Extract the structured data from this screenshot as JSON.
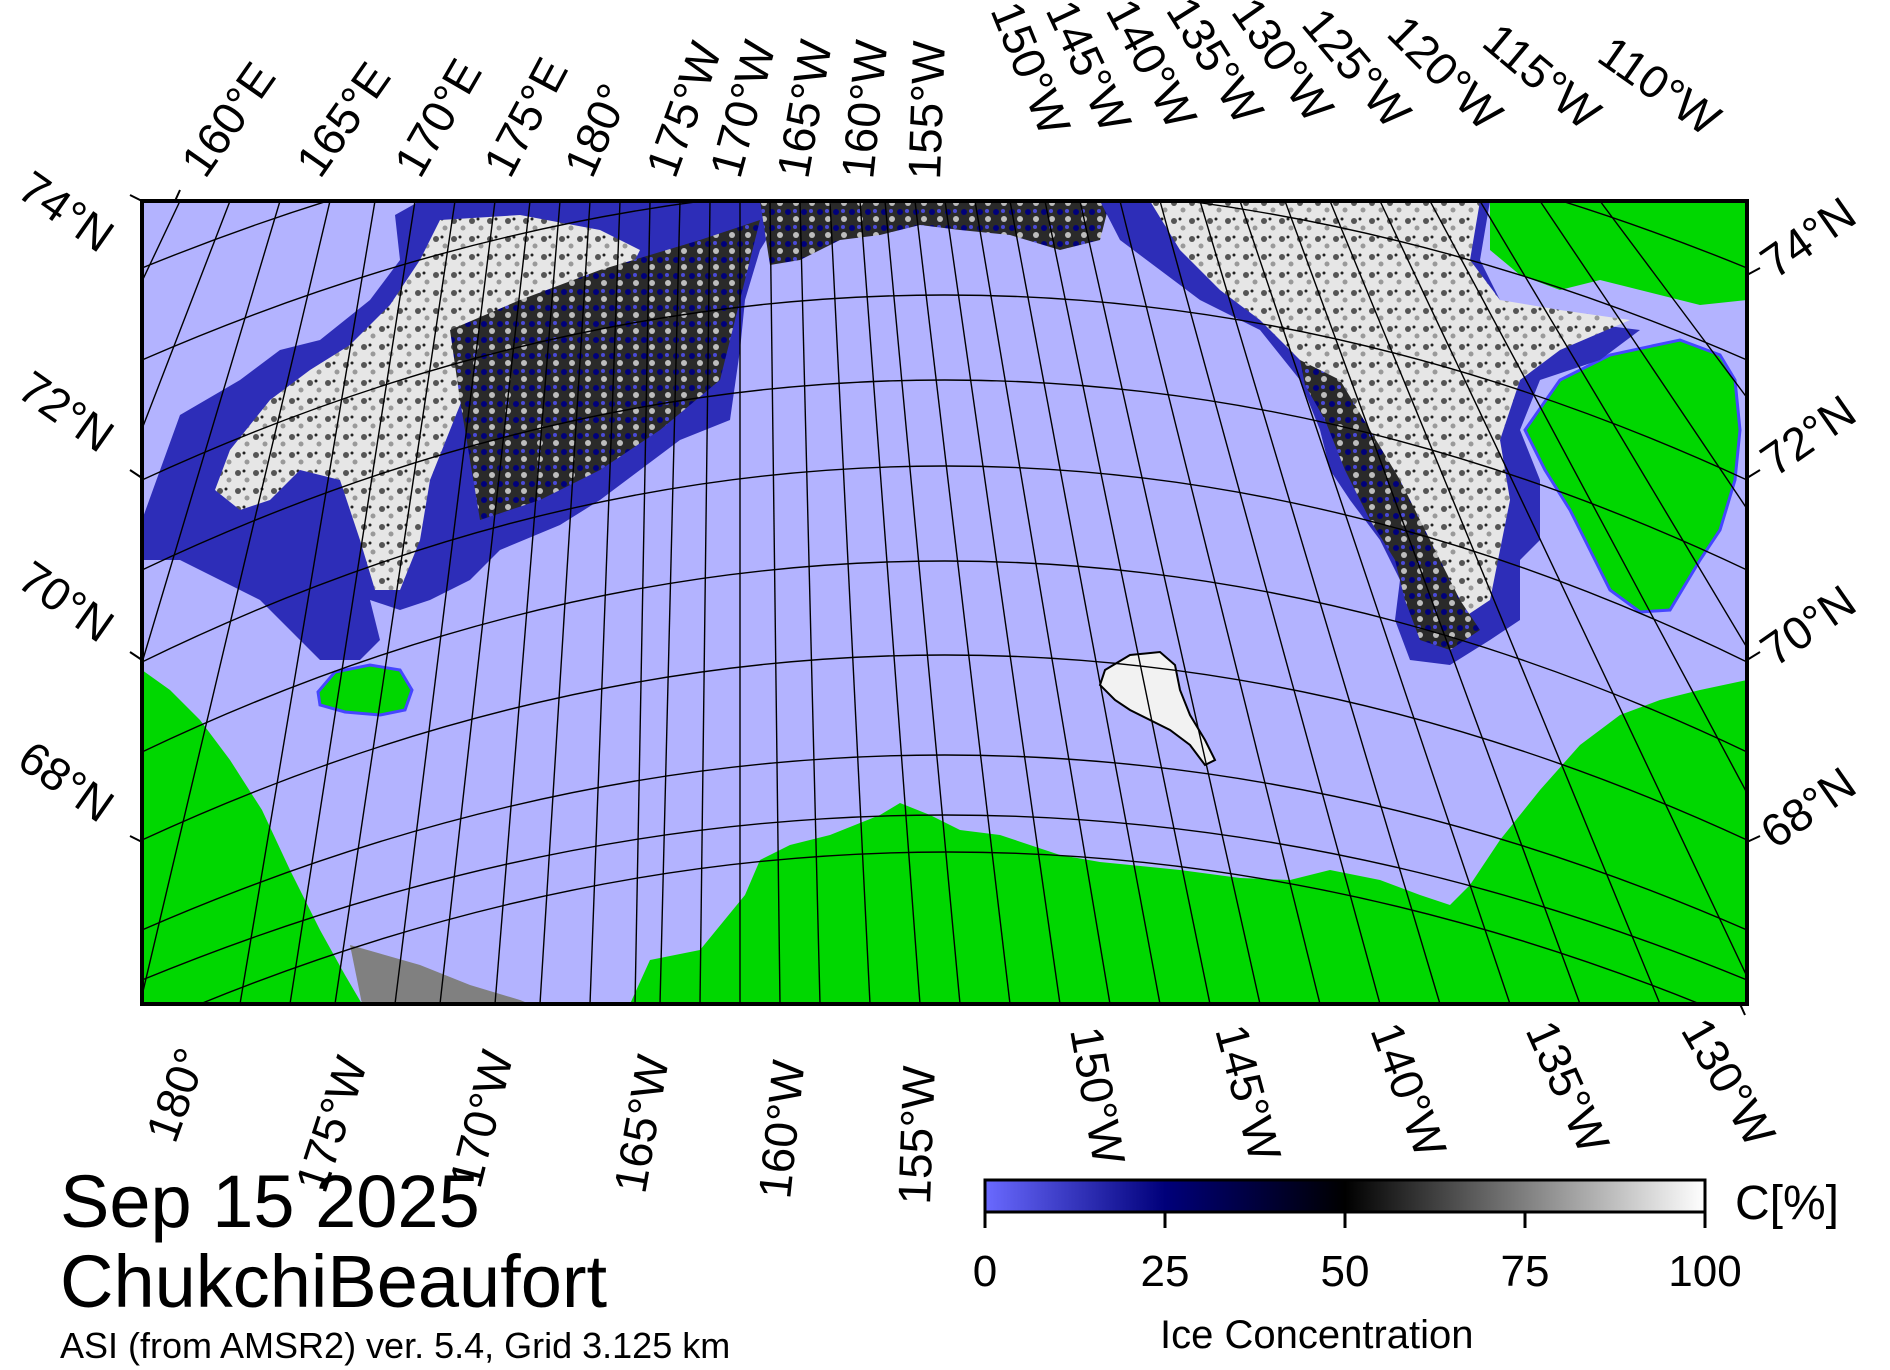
{
  "map": {
    "date": "Sep 15 2025",
    "region": "ChukchiBeaufort",
    "credit": "ASI (from AMSR2) ver. 5.4,  Grid 3.125 km",
    "colors": {
      "ocean": "#b3b3ff",
      "land": "#00d700",
      "land_nodata": "#808080",
      "ice_low": "#6a6aff",
      "ice_mid": "#00007a",
      "ice_50": "#000000",
      "ice_high": "#ffffff",
      "frame": "#000000"
    },
    "top_lon_labels": [
      "160°E",
      "165°E",
      "170°E",
      "175°E",
      "180°",
      "175°W",
      "170°W",
      "165°W",
      "160°W",
      "155°W",
      "150°W",
      "145°W",
      "140°W",
      "135°W",
      "130°W",
      "125°W",
      "120°W",
      "115°W",
      "110°W"
    ],
    "bottom_lon_labels": [
      "180°",
      "175°W",
      "170°W",
      "165°W",
      "160°W",
      "155°W",
      "150°W",
      "145°W",
      "140°W",
      "135°W",
      "130°W"
    ],
    "left_lat_labels": [
      "74°N",
      "72°N",
      "70°N",
      "68°N"
    ],
    "right_lat_labels": [
      "74°N",
      "72°N",
      "70°N",
      "68°N"
    ]
  },
  "colorbar": {
    "title": "Ice Concentration",
    "unit": "C[%]",
    "range": [
      0,
      100
    ],
    "ticks": [
      "0",
      "25",
      "50",
      "75",
      "100"
    ]
  }
}
